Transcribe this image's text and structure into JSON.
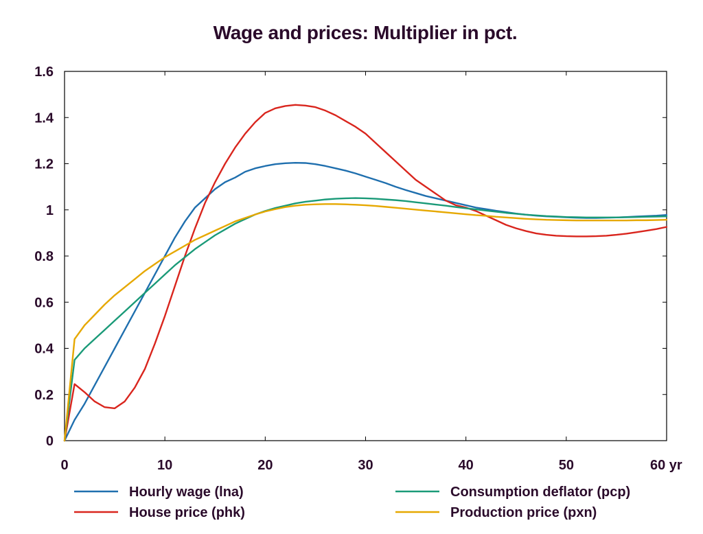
{
  "chart_data": {
    "type": "line",
    "title": "Wage and prices: Multiplier in pct.",
    "xlabel": "",
    "ylabel": "",
    "x_unit_label": "yr",
    "xlim": [
      0,
      60
    ],
    "ylim": [
      0,
      1.6
    ],
    "x_ticks": [
      {
        "value": 0,
        "label": "0"
      },
      {
        "value": 10,
        "label": "10"
      },
      {
        "value": 20,
        "label": "20"
      },
      {
        "value": 30,
        "label": "30"
      },
      {
        "value": 40,
        "label": "40"
      },
      {
        "value": 50,
        "label": "50"
      },
      {
        "value": 60,
        "label": "60 yr"
      }
    ],
    "y_ticks": [
      {
        "value": 0,
        "label": "0"
      },
      {
        "value": 0.2,
        "label": "0.2"
      },
      {
        "value": 0.4,
        "label": "0.4"
      },
      {
        "value": 0.6,
        "label": "0.6"
      },
      {
        "value": 0.8,
        "label": "0.8"
      },
      {
        "value": 1.0,
        "label": "1"
      },
      {
        "value": 1.2,
        "label": "1.2"
      },
      {
        "value": 1.4,
        "label": "1.4"
      },
      {
        "value": 1.6,
        "label": "1.6"
      }
    ],
    "grid": false,
    "legend_position": "bottom",
    "series": [
      {
        "name": "Hourly wage (lna)",
        "color": "#1f6fae",
        "x": [
          0,
          1,
          2,
          3,
          4,
          5,
          6,
          7,
          8,
          9,
          10,
          11,
          12,
          13,
          14,
          15,
          16,
          17,
          18,
          19,
          20,
          21,
          22,
          23,
          24,
          25,
          26,
          27,
          28,
          29,
          30,
          31,
          32,
          33,
          34,
          35,
          36,
          37,
          38,
          39,
          40,
          41,
          42,
          43,
          44,
          45,
          46,
          47,
          48,
          49,
          50,
          51,
          52,
          53,
          54,
          55,
          56,
          57,
          58,
          59,
          60
        ],
        "y": [
          0,
          0.09,
          0.16,
          0.24,
          0.32,
          0.4,
          0.48,
          0.56,
          0.64,
          0.72,
          0.8,
          0.88,
          0.95,
          1.01,
          1.05,
          1.09,
          1.12,
          1.14,
          1.165,
          1.18,
          1.19,
          1.198,
          1.202,
          1.204,
          1.203,
          1.198,
          1.19,
          1.18,
          1.17,
          1.158,
          1.144,
          1.13,
          1.116,
          1.1,
          1.086,
          1.073,
          1.06,
          1.05,
          1.04,
          1.03,
          1.02,
          1.01,
          1.003,
          0.996,
          0.99,
          0.984,
          0.979,
          0.975,
          0.972,
          0.97,
          0.968,
          0.966,
          0.965,
          0.965,
          0.966,
          0.967,
          0.969,
          0.971,
          0.973,
          0.975,
          0.978
        ]
      },
      {
        "name": "House price (phk)",
        "color": "#d9251d",
        "x": [
          0,
          1,
          2,
          3,
          4,
          5,
          6,
          7,
          8,
          9,
          10,
          11,
          12,
          13,
          14,
          15,
          16,
          17,
          18,
          19,
          20,
          21,
          22,
          23,
          24,
          25,
          26,
          27,
          28,
          29,
          30,
          31,
          32,
          33,
          34,
          35,
          36,
          37,
          38,
          39,
          40,
          41,
          42,
          43,
          44,
          45,
          46,
          47,
          48,
          49,
          50,
          51,
          52,
          53,
          54,
          55,
          56,
          57,
          58,
          59,
          60
        ],
        "y": [
          0,
          0.245,
          0.21,
          0.17,
          0.145,
          0.14,
          0.17,
          0.23,
          0.31,
          0.42,
          0.54,
          0.67,
          0.8,
          0.92,
          1.03,
          1.12,
          1.2,
          1.27,
          1.33,
          1.38,
          1.42,
          1.44,
          1.45,
          1.455,
          1.452,
          1.445,
          1.43,
          1.41,
          1.385,
          1.36,
          1.33,
          1.29,
          1.25,
          1.21,
          1.17,
          1.13,
          1.1,
          1.07,
          1.04,
          1.02,
          1.01,
          0.995,
          0.975,
          0.955,
          0.935,
          0.92,
          0.908,
          0.898,
          0.892,
          0.888,
          0.886,
          0.885,
          0.885,
          0.886,
          0.888,
          0.892,
          0.897,
          0.903,
          0.91,
          0.917,
          0.926
        ]
      },
      {
        "name": "Consumption deflator (pcp)",
        "color": "#1a9a78",
        "x": [
          0,
          1,
          2,
          3,
          4,
          5,
          6,
          7,
          8,
          9,
          10,
          11,
          12,
          13,
          14,
          15,
          16,
          17,
          18,
          19,
          20,
          21,
          22,
          23,
          24,
          25,
          26,
          27,
          28,
          29,
          30,
          31,
          32,
          33,
          34,
          35,
          36,
          37,
          38,
          39,
          40,
          41,
          42,
          43,
          44,
          45,
          46,
          47,
          48,
          49,
          50,
          51,
          52,
          53,
          54,
          55,
          56,
          57,
          58,
          59,
          60
        ],
        "y": [
          0,
          0.35,
          0.4,
          0.44,
          0.48,
          0.52,
          0.56,
          0.6,
          0.64,
          0.68,
          0.72,
          0.76,
          0.795,
          0.83,
          0.86,
          0.89,
          0.915,
          0.94,
          0.96,
          0.98,
          0.995,
          1.008,
          1.018,
          1.028,
          1.035,
          1.04,
          1.045,
          1.048,
          1.05,
          1.051,
          1.05,
          1.048,
          1.045,
          1.042,
          1.038,
          1.033,
          1.028,
          1.023,
          1.018,
          1.012,
          1.007,
          1.002,
          0.997,
          0.992,
          0.987,
          0.983,
          0.979,
          0.976,
          0.973,
          0.971,
          0.969,
          0.968,
          0.967,
          0.967,
          0.967,
          0.967,
          0.968,
          0.969,
          0.97,
          0.971,
          0.972
        ]
      },
      {
        "name": "Production price (pxn)",
        "color": "#e6a800",
        "x": [
          0,
          1,
          2,
          3,
          4,
          5,
          6,
          7,
          8,
          9,
          10,
          11,
          12,
          13,
          14,
          15,
          16,
          17,
          18,
          19,
          20,
          21,
          22,
          23,
          24,
          25,
          26,
          27,
          28,
          29,
          30,
          31,
          32,
          33,
          34,
          35,
          36,
          37,
          38,
          39,
          40,
          41,
          42,
          43,
          44,
          45,
          46,
          47,
          48,
          49,
          50,
          51,
          52,
          53,
          54,
          55,
          56,
          57,
          58,
          59,
          60
        ],
        "y": [
          0,
          0.44,
          0.5,
          0.545,
          0.59,
          0.63,
          0.665,
          0.7,
          0.735,
          0.765,
          0.795,
          0.82,
          0.845,
          0.87,
          0.89,
          0.91,
          0.93,
          0.95,
          0.965,
          0.98,
          0.993,
          1.003,
          1.012,
          1.018,
          1.022,
          1.024,
          1.025,
          1.025,
          1.024,
          1.022,
          1.02,
          1.017,
          1.013,
          1.009,
          1.005,
          1.001,
          0.997,
          0.993,
          0.989,
          0.985,
          0.981,
          0.977,
          0.974,
          0.97,
          0.967,
          0.964,
          0.961,
          0.959,
          0.957,
          0.956,
          0.955,
          0.954,
          0.954,
          0.954,
          0.954,
          0.954,
          0.954,
          0.955,
          0.955,
          0.956,
          0.957
        ]
      }
    ]
  }
}
